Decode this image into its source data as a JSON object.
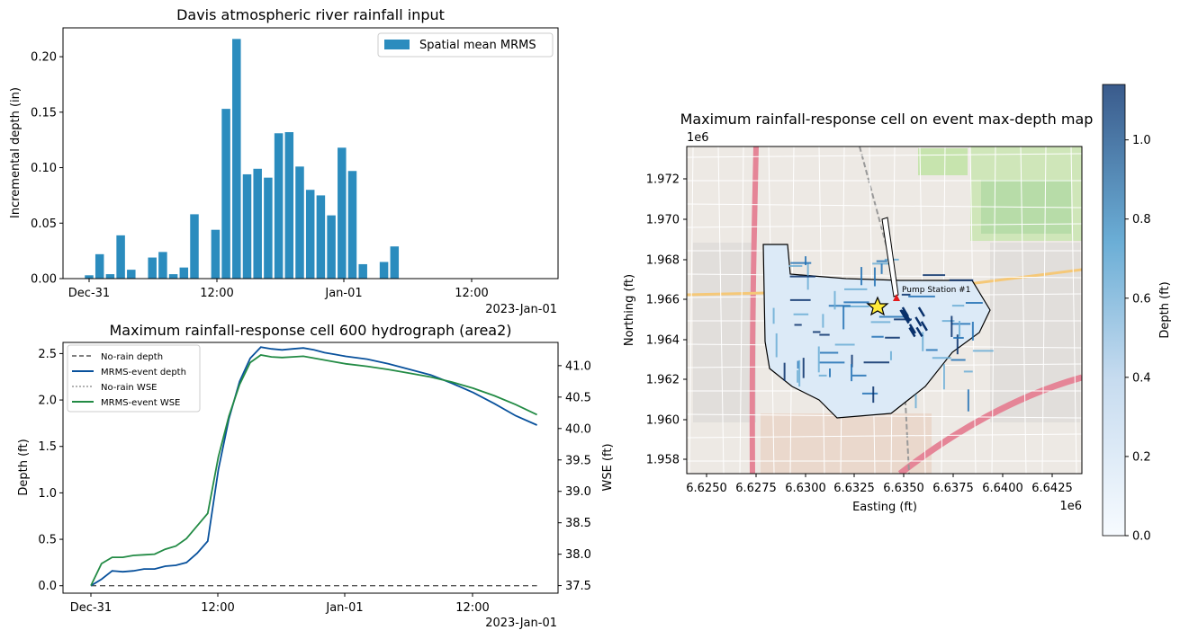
{
  "chart_data": [
    {
      "type": "bar",
      "title": "Davis atmospheric river rainfall input",
      "ylabel": "Incremental depth (in)",
      "xlabel": "",
      "ylim": [
        0,
        0.226
      ],
      "x_ticks": [
        "Dec-31",
        "12:00",
        "Jan-01",
        "12:00"
      ],
      "x_offset_label": "2023-Jan-01",
      "y_ticks": [
        "0.00",
        "0.05",
        "0.10",
        "0.15",
        "0.20"
      ],
      "legend": "top-right",
      "series": [
        {
          "name": "Spatial mean MRMS",
          "color": "#2b8cbe",
          "values": [
            0.003,
            0.022,
            0.004,
            0.039,
            0.008,
            0.0,
            0.019,
            0.024,
            0.004,
            0.01,
            0.058,
            0.0,
            0.044,
            0.153,
            0.216,
            0.094,
            0.099,
            0.091,
            0.131,
            0.132,
            0.101,
            0.08,
            0.075,
            0.057,
            0.118,
            0.097,
            0.013,
            0.0,
            0.015,
            0.029
          ]
        }
      ]
    },
    {
      "type": "line",
      "title": "Maximum rainfall-response cell 600 hydrograph (area2)",
      "ylabel": "Depth (ft)",
      "y2label": "WSE (ft)",
      "ylim": [
        -0.08,
        2.62
      ],
      "y2lim": [
        37.38,
        41.37
      ],
      "x_ticks": [
        "Dec-31",
        "12:00",
        "Jan-01",
        "12:00"
      ],
      "x_offset_label": "2023-Jan-01",
      "y_ticks": [
        "0.0",
        "0.5",
        "1.0",
        "1.5",
        "2.0",
        "2.5"
      ],
      "y2_ticks": [
        "37.5",
        "38.0",
        "38.5",
        "39.0",
        "39.5",
        "40.0",
        "40.5",
        "41.0"
      ],
      "legend": "top-left",
      "x_hours": [
        0,
        1,
        2,
        3,
        4,
        5,
        6,
        7,
        8,
        9,
        10,
        11,
        12,
        13,
        14,
        15,
        16,
        17,
        18,
        19,
        20,
        21,
        22,
        23,
        24,
        26,
        28,
        30,
        32,
        34,
        36,
        38,
        40,
        42
      ],
      "series": [
        {
          "name": "No-rain depth",
          "axis": "left",
          "style": "dashed",
          "color": "#555555",
          "values": [
            0,
            0,
            0,
            0,
            0,
            0,
            0,
            0,
            0,
            0,
            0,
            0,
            0,
            0,
            0,
            0,
            0,
            0,
            0,
            0,
            0,
            0,
            0,
            0,
            0,
            0,
            0,
            0,
            0,
            0,
            0,
            0,
            0,
            0
          ]
        },
        {
          "name": "MRMS-event depth",
          "axis": "left",
          "style": "solid",
          "color": "#08519c",
          "values": [
            0.0,
            0.07,
            0.16,
            0.15,
            0.16,
            0.18,
            0.18,
            0.21,
            0.22,
            0.25,
            0.35,
            0.48,
            1.25,
            1.8,
            2.2,
            2.45,
            2.57,
            2.55,
            2.54,
            2.55,
            2.56,
            2.54,
            2.51,
            2.49,
            2.47,
            2.44,
            2.39,
            2.33,
            2.27,
            2.18,
            2.08,
            1.96,
            1.83,
            1.73
          ]
        },
        {
          "name": "No-rain WSE",
          "axis": "right",
          "style": "dotted",
          "color": "#999999",
          "values": []
        },
        {
          "name": "MRMS-event WSE",
          "axis": "right",
          "style": "solid",
          "color": "#238b45",
          "values": [
            37.5,
            37.85,
            37.95,
            37.95,
            37.98,
            37.99,
            38.0,
            38.08,
            38.13,
            38.25,
            38.45,
            38.65,
            39.55,
            40.2,
            40.7,
            41.05,
            41.17,
            41.14,
            41.13,
            41.14,
            41.15,
            41.12,
            41.09,
            41.06,
            41.03,
            40.99,
            40.94,
            40.88,
            40.82,
            40.74,
            40.64,
            40.52,
            40.38,
            40.22
          ]
        }
      ]
    },
    {
      "type": "heatmap",
      "title": "Maximum rainfall-response cell on event max-depth map",
      "xlabel": "Easting (ft)",
      "ylabel": "Northing (ft)",
      "x_offset_label": "1e6",
      "y_offset_label": "1e6",
      "x_ticks": [
        "6.6250",
        "6.6275",
        "6.6300",
        "6.6325",
        "6.6350",
        "6.6375",
        "6.6400",
        "6.6425"
      ],
      "y_ticks": [
        "1.958",
        "1.960",
        "1.962",
        "1.964",
        "1.966",
        "1.968",
        "1.970",
        "1.972"
      ],
      "colorbar_label": "Depth (ft)",
      "colorbar_ticks": [
        "0.0",
        "0.2",
        "0.4",
        "0.6",
        "0.8",
        "1.0"
      ],
      "colorbar_range": [
        0.0,
        1.14
      ],
      "annotation": "Pump Station #1"
    }
  ]
}
